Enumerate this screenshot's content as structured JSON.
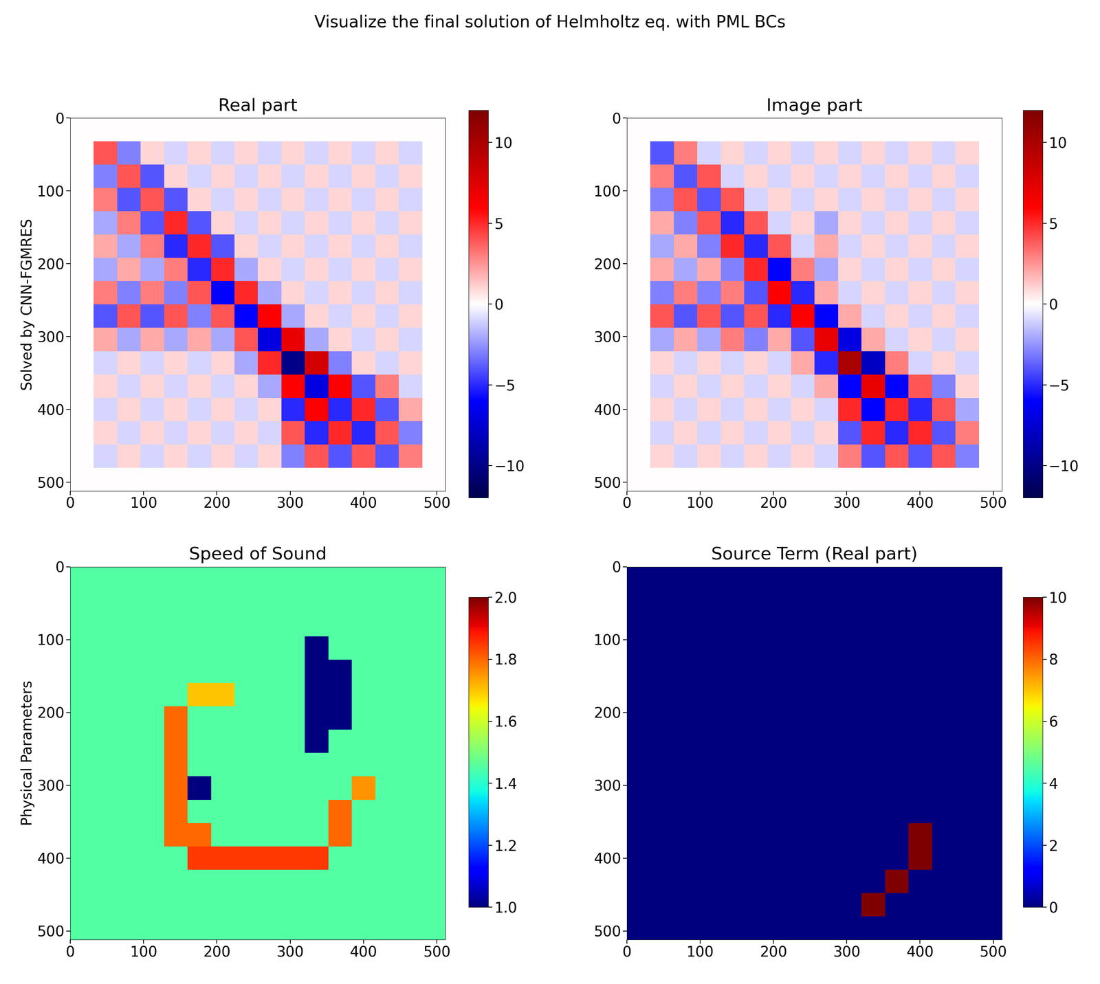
{
  "title": "Visualize the final solution of Helmholtz eq. with PML BCs",
  "chart_data": [
    {
      "type": "heatmap",
      "title": "Real part",
      "ylabel": "Solved by CNN-FGMRES",
      "color": "seismic",
      "xlim": [
        0,
        512
      ],
      "ylim": [
        512,
        0
      ],
      "xticks": [
        0,
        100,
        200,
        300,
        400,
        500
      ],
      "yticks": [
        0,
        100,
        200,
        300,
        400,
        500
      ],
      "colorbar_range": [
        -12,
        12
      ],
      "colorbar_ticks": [
        {
          "value": -10,
          "label": "−10"
        },
        {
          "value": -5,
          "label": "−5"
        },
        0,
        5,
        10
      ],
      "cells": [
        [
          0,
          0,
          0,
          0,
          0,
          0,
          0,
          0,
          0,
          0,
          0,
          0,
          0,
          0,
          0,
          0
        ],
        [
          0,
          4,
          -3,
          1,
          -1,
          1,
          -1,
          1,
          -1,
          1,
          -1,
          1,
          -1,
          1,
          -1,
          0
        ],
        [
          0,
          -3,
          4,
          -4,
          1,
          -1,
          1,
          -1,
          1,
          -1,
          1,
          -1,
          1,
          -1,
          1,
          0
        ],
        [
          0,
          3,
          -4,
          4,
          -4,
          1,
          -1,
          1,
          -1,
          1,
          -1,
          1,
          -1,
          1,
          -1,
          0
        ],
        [
          0,
          -2,
          3,
          -4,
          5,
          -4,
          1,
          -1,
          1,
          -1,
          1,
          -1,
          1,
          -1,
          1,
          0
        ],
        [
          0,
          2,
          -2,
          3,
          -5,
          5,
          -4,
          1,
          -1,
          1,
          -1,
          1,
          -1,
          1,
          -1,
          0
        ],
        [
          0,
          -2,
          2,
          -2,
          3,
          -5,
          5,
          -2,
          1,
          -1,
          1,
          -1,
          1,
          -1,
          1,
          0
        ],
        [
          0,
          3,
          -3,
          3,
          -3,
          4,
          -6,
          5,
          -2,
          1,
          -1,
          1,
          -1,
          1,
          -1,
          0
        ],
        [
          0,
          -4,
          4,
          -4,
          4,
          -3,
          4,
          -6,
          6,
          -2,
          1,
          -1,
          1,
          -1,
          1,
          0
        ],
        [
          0,
          2,
          -2,
          2,
          -2,
          2,
          -2,
          4,
          -7,
          7,
          -2,
          1,
          -1,
          1,
          -1,
          0
        ],
        [
          0,
          -1,
          1,
          -1,
          1,
          -1,
          1,
          -2,
          5,
          -10,
          8,
          -3,
          1,
          -1,
          1,
          0
        ],
        [
          0,
          1,
          -1,
          1,
          -1,
          1,
          -1,
          1,
          -2,
          6,
          -7,
          6,
          -4,
          3,
          -1,
          0
        ],
        [
          0,
          -1,
          1,
          -1,
          1,
          -1,
          1,
          -1,
          1,
          -5,
          6,
          -5,
          5,
          -4,
          2,
          0
        ],
        [
          0,
          1,
          -1,
          1,
          -1,
          1,
          -1,
          1,
          -1,
          4,
          -5,
          5,
          -5,
          4,
          -3,
          0
        ],
        [
          0,
          -1,
          1,
          -1,
          1,
          -1,
          1,
          -1,
          1,
          -3,
          4,
          -4,
          4,
          -4,
          3,
          0
        ],
        [
          0,
          0,
          0,
          0,
          0,
          0,
          0,
          0,
          0,
          0,
          0,
          0,
          0,
          0,
          0,
          0
        ]
      ]
    },
    {
      "type": "heatmap",
      "title": "Image part",
      "color": "seismic",
      "xlim": [
        0,
        512
      ],
      "ylim": [
        512,
        0
      ],
      "xticks": [
        0,
        100,
        200,
        300,
        400,
        500
      ],
      "yticks": [
        0,
        100,
        200,
        300,
        400,
        500
      ],
      "colorbar_range": [
        -12,
        12
      ],
      "colorbar_ticks": [
        {
          "value": -10,
          "label": "−10"
        },
        {
          "value": -5,
          "label": "−5"
        },
        0,
        5,
        10
      ],
      "cells": [
        [
          0,
          0,
          0,
          0,
          0,
          0,
          0,
          0,
          0,
          0,
          0,
          0,
          0,
          0,
          0,
          0
        ],
        [
          0,
          -4,
          3,
          -1,
          1,
          -1,
          1,
          -1,
          1,
          -1,
          1,
          -1,
          1,
          -1,
          1,
          0
        ],
        [
          0,
          3,
          -4,
          4,
          -1,
          1,
          -1,
          1,
          -1,
          1,
          -1,
          1,
          -1,
          1,
          -1,
          0
        ],
        [
          0,
          -3,
          4,
          -4,
          4,
          -1,
          1,
          -1,
          1,
          -1,
          1,
          -1,
          1,
          -1,
          1,
          0
        ],
        [
          0,
          2,
          -3,
          4,
          -5,
          4,
          -1,
          1,
          -2,
          1,
          -1,
          1,
          -1,
          1,
          -1,
          0
        ],
        [
          0,
          -2,
          2,
          -3,
          5,
          -5,
          4,
          -1,
          2,
          -1,
          1,
          -1,
          1,
          -1,
          1,
          0
        ],
        [
          0,
          2,
          -2,
          2,
          -3,
          5,
          -6,
          3,
          -2,
          1,
          -1,
          1,
          -1,
          1,
          -1,
          0
        ],
        [
          0,
          -3,
          3,
          -3,
          3,
          -4,
          6,
          -5,
          2,
          -1,
          1,
          -1,
          1,
          -1,
          1,
          0
        ],
        [
          0,
          4,
          -4,
          4,
          -4,
          4,
          -5,
          6,
          -6,
          2,
          -1,
          1,
          -1,
          1,
          -1,
          0
        ],
        [
          0,
          -2,
          2,
          -2,
          3,
          -3,
          2,
          -4,
          7,
          -7,
          2,
          -1,
          1,
          -1,
          1,
          0
        ],
        [
          0,
          1,
          -1,
          1,
          -1,
          1,
          -1,
          2,
          -5,
          10,
          -8,
          3,
          -1,
          1,
          -1,
          0
        ],
        [
          0,
          -1,
          1,
          -1,
          1,
          -1,
          1,
          -1,
          2,
          -6,
          7,
          -6,
          4,
          -3,
          1,
          0
        ],
        [
          0,
          1,
          -1,
          1,
          -1,
          1,
          -1,
          1,
          -1,
          5,
          -6,
          5,
          -5,
          4,
          -2,
          0
        ],
        [
          0,
          -1,
          1,
          -1,
          1,
          -1,
          1,
          -1,
          1,
          -4,
          5,
          -5,
          5,
          -4,
          3,
          0
        ],
        [
          0,
          1,
          -1,
          1,
          -1,
          1,
          -1,
          1,
          -1,
          3,
          -4,
          4,
          -4,
          4,
          -3,
          0
        ],
        [
          0,
          0,
          0,
          0,
          0,
          0,
          0,
          0,
          0,
          0,
          0,
          0,
          0,
          0,
          0,
          0
        ]
      ]
    },
    {
      "type": "heatmap",
      "title": "Speed of Sound",
      "ylabel": "Physical Parameters",
      "color": "jet",
      "xlim": [
        0,
        512
      ],
      "ylim": [
        512,
        0
      ],
      "xticks": [
        0,
        100,
        200,
        300,
        400,
        500
      ],
      "yticks": [
        0,
        100,
        200,
        300,
        400,
        500
      ],
      "colorbar_range": [
        1.0,
        2.0
      ],
      "colorbar_ticks": [
        {
          "value": 1.0,
          "label": "1.0"
        },
        {
          "value": 1.2,
          "label": "1.2"
        },
        {
          "value": 1.4,
          "label": "1.4"
        },
        {
          "value": 1.6,
          "label": "1.6"
        },
        {
          "value": 1.8,
          "label": "1.8"
        },
        {
          "value": 2.0,
          "label": "2.0"
        }
      ],
      "cells": [
        [
          1.45,
          1.45,
          1.45,
          1.45,
          1.45,
          1.45,
          1.45,
          1.45,
          1.45,
          1.45,
          1.45,
          1.45,
          1.45,
          1.45,
          1.45,
          1.45
        ],
        [
          1.45,
          1.45,
          1.45,
          1.45,
          1.45,
          1.45,
          1.45,
          1.45,
          1.45,
          1.45,
          1.45,
          1.45,
          1.45,
          1.45,
          1.45,
          1.45
        ],
        [
          1.45,
          1.45,
          1.45,
          1.45,
          1.45,
          1.45,
          1.45,
          1.45,
          1.45,
          1.45,
          1.45,
          1.45,
          1.45,
          1.45,
          1.45,
          1.45
        ],
        [
          1.45,
          1.45,
          1.45,
          1.45,
          1.45,
          1.45,
          1.45,
          1.45,
          1.45,
          1.45,
          1.0,
          1.45,
          1.45,
          1.45,
          1.45,
          1.45
        ],
        [
          1.45,
          1.45,
          1.45,
          1.45,
          1.45,
          1.45,
          1.45,
          1.45,
          1.45,
          1.45,
          1.0,
          1.0,
          1.45,
          1.45,
          1.45,
          1.45
        ],
        [
          1.45,
          1.45,
          1.45,
          1.45,
          1.45,
          1.7,
          1.7,
          1.45,
          1.45,
          1.45,
          1.0,
          1.0,
          1.45,
          1.45,
          1.45,
          1.45
        ],
        [
          1.45,
          1.45,
          1.45,
          1.45,
          1.8,
          1.45,
          1.45,
          1.45,
          1.45,
          1.45,
          1.0,
          1.0,
          1.45,
          1.45,
          1.45,
          1.45
        ],
        [
          1.45,
          1.45,
          1.45,
          1.45,
          1.8,
          1.45,
          1.45,
          1.45,
          1.45,
          1.45,
          1.0,
          1.45,
          1.45,
          1.45,
          1.45,
          1.45
        ],
        [
          1.45,
          1.45,
          1.45,
          1.45,
          1.8,
          1.45,
          1.45,
          1.45,
          1.45,
          1.45,
          1.45,
          1.45,
          1.45,
          1.45,
          1.45,
          1.45
        ],
        [
          1.45,
          1.45,
          1.45,
          1.45,
          1.8,
          1.0,
          1.45,
          1.45,
          1.45,
          1.45,
          1.45,
          1.45,
          1.75,
          1.45,
          1.45,
          1.45
        ],
        [
          1.45,
          1.45,
          1.45,
          1.45,
          1.8,
          1.45,
          1.45,
          1.45,
          1.45,
          1.45,
          1.45,
          1.8,
          1.45,
          1.45,
          1.45,
          1.45
        ],
        [
          1.45,
          1.45,
          1.45,
          1.45,
          1.8,
          1.8,
          1.45,
          1.45,
          1.45,
          1.45,
          1.45,
          1.8,
          1.45,
          1.45,
          1.45,
          1.45
        ],
        [
          1.45,
          1.45,
          1.45,
          1.45,
          1.45,
          1.85,
          1.85,
          1.85,
          1.85,
          1.85,
          1.85,
          1.45,
          1.45,
          1.45,
          1.45,
          1.45
        ],
        [
          1.45,
          1.45,
          1.45,
          1.45,
          1.45,
          1.45,
          1.45,
          1.45,
          1.45,
          1.45,
          1.45,
          1.45,
          1.45,
          1.45,
          1.45,
          1.45
        ],
        [
          1.45,
          1.45,
          1.45,
          1.45,
          1.45,
          1.45,
          1.45,
          1.45,
          1.45,
          1.45,
          1.45,
          1.45,
          1.45,
          1.45,
          1.45,
          1.45
        ],
        [
          1.45,
          1.45,
          1.45,
          1.45,
          1.45,
          1.45,
          1.45,
          1.45,
          1.45,
          1.45,
          1.45,
          1.45,
          1.45,
          1.45,
          1.45,
          1.45
        ]
      ]
    },
    {
      "type": "heatmap",
      "title": "Source Term (Real part)",
      "color": "jet",
      "xlim": [
        0,
        512
      ],
      "ylim": [
        512,
        0
      ],
      "xticks": [
        0,
        100,
        200,
        300,
        400,
        500
      ],
      "yticks": [
        0,
        100,
        200,
        300,
        400,
        500
      ],
      "colorbar_range": [
        0,
        10
      ],
      "colorbar_ticks": [
        0,
        2,
        4,
        6,
        8,
        10
      ],
      "cells": [
        [
          0,
          0,
          0,
          0,
          0,
          0,
          0,
          0,
          0,
          0,
          0,
          0,
          0,
          0,
          0,
          0
        ],
        [
          0,
          0,
          0,
          0,
          0,
          0,
          0,
          0,
          0,
          0,
          0,
          0,
          0,
          0,
          0,
          0
        ],
        [
          0,
          0,
          0,
          0,
          0,
          0,
          0,
          0,
          0,
          0,
          0,
          0,
          0,
          0,
          0,
          0
        ],
        [
          0,
          0,
          0,
          0,
          0,
          0,
          0,
          0,
          0,
          0,
          0,
          0,
          0,
          0,
          0,
          0
        ],
        [
          0,
          0,
          0,
          0,
          0,
          0,
          0,
          0,
          0,
          0,
          0,
          0,
          0,
          0,
          0,
          0
        ],
        [
          0,
          0,
          0,
          0,
          0,
          0,
          0,
          0,
          0,
          0,
          0,
          0,
          0,
          0,
          0,
          0
        ],
        [
          0,
          0,
          0,
          0,
          0,
          0,
          0,
          0,
          0,
          0,
          0,
          0,
          0,
          0,
          0,
          0
        ],
        [
          0,
          0,
          0,
          0,
          0,
          0,
          0,
          0,
          0,
          0,
          0,
          0,
          0,
          0,
          0,
          0
        ],
        [
          0,
          0,
          0,
          0,
          0,
          0,
          0,
          0,
          0,
          0,
          0,
          0,
          0,
          0,
          0,
          0
        ],
        [
          0,
          0,
          0,
          0,
          0,
          0,
          0,
          0,
          0,
          0,
          0,
          0,
          0,
          0,
          0,
          0
        ],
        [
          0,
          0,
          0,
          0,
          0,
          0,
          0,
          0,
          0,
          0,
          0,
          0,
          0,
          0,
          0,
          0
        ],
        [
          0,
          0,
          0,
          0,
          0,
          0,
          0,
          0,
          0,
          0,
          0,
          0,
          10,
          0,
          0,
          0
        ],
        [
          0,
          0,
          0,
          0,
          0,
          0,
          0,
          0,
          0,
          0,
          0,
          0,
          10,
          0,
          0,
          0
        ],
        [
          0,
          0,
          0,
          0,
          0,
          0,
          0,
          0,
          0,
          0,
          0,
          10,
          0,
          0,
          0,
          0
        ],
        [
          0,
          0,
          0,
          0,
          0,
          0,
          0,
          0,
          0,
          0,
          10,
          0,
          0,
          0,
          0,
          0
        ],
        [
          0,
          0,
          0,
          0,
          0,
          0,
          0,
          0,
          0,
          0,
          0,
          0,
          0,
          0,
          0,
          0
        ]
      ]
    }
  ]
}
